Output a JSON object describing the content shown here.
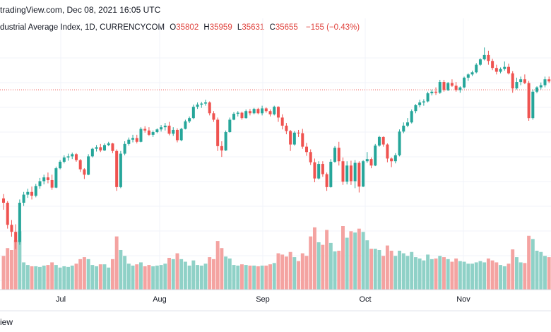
{
  "header": {
    "source": "tradingView.com, Dec 08, 2021 16:05 UTC"
  },
  "symbol": {
    "name": "dustrial Average Index, 1D, CURRENCYCOM",
    "open_key": "O",
    "open": "35802",
    "high_key": "H",
    "high": "35959",
    "low_key": "L",
    "low": "35631",
    "close_key": "C",
    "close": "35655",
    "change": "−155 (−0.43%)"
  },
  "footer": {
    "text": "iew"
  },
  "colors": {
    "up": "#26a69a",
    "down": "#ef5350",
    "vol_up": "#8fd1c7",
    "vol_down": "#f4a3a1",
    "price_line": "#ef5350",
    "grid": "#f0f3fa"
  },
  "chart_data": {
    "type": "candlestick",
    "title": "",
    "x_ticks": [
      "Jul",
      "Aug",
      "Sep",
      "Oct",
      "Nov"
    ],
    "ylim": [
      32800,
      36600
    ],
    "last_price": 35655,
    "candles": [
      [
        33640,
        33720,
        33430,
        33560,
        520
      ],
      [
        33560,
        33590,
        33080,
        33150,
        640
      ],
      [
        33150,
        33240,
        32930,
        33020,
        610
      ],
      [
        33020,
        33160,
        32700,
        32830,
        760
      ],
      [
        32830,
        33620,
        32780,
        33560,
        900
      ],
      [
        33560,
        33760,
        33500,
        33710,
        420
      ],
      [
        33710,
        33820,
        33650,
        33760,
        380
      ],
      [
        33760,
        33860,
        33620,
        33690,
        360
      ],
      [
        33690,
        33910,
        33660,
        33870,
        360
      ],
      [
        33870,
        34020,
        33820,
        33960,
        350
      ],
      [
        33960,
        34080,
        33900,
        34030,
        370
      ],
      [
        34030,
        34120,
        33920,
        33980,
        380
      ],
      [
        33980,
        34080,
        33800,
        33840,
        420
      ],
      [
        33840,
        34230,
        33830,
        34200,
        380
      ],
      [
        34200,
        34350,
        34180,
        34320,
        340
      ],
      [
        34320,
        34440,
        34290,
        34400,
        360
      ],
      [
        34400,
        34470,
        34340,
        34420,
        350
      ],
      [
        34420,
        34490,
        34370,
        34460,
        370
      ],
      [
        34460,
        34480,
        34320,
        34350,
        400
      ],
      [
        34350,
        34370,
        34130,
        34180,
        470
      ],
      [
        34180,
        34200,
        34000,
        34080,
        500
      ],
      [
        34080,
        34460,
        34070,
        34420,
        470
      ],
      [
        34420,
        34580,
        34400,
        34560,
        380
      ],
      [
        34560,
        34630,
        34510,
        34590,
        360
      ],
      [
        34590,
        34650,
        34500,
        34530,
        390
      ],
      [
        34530,
        34660,
        34520,
        34630,
        390
      ],
      [
        34630,
        34690,
        34610,
        34660,
        340
      ],
      [
        34660,
        34670,
        34480,
        34520,
        470
      ],
      [
        34520,
        34550,
        33780,
        33850,
        820
      ],
      [
        33850,
        34520,
        33830,
        34470,
        610
      ],
      [
        34470,
        34700,
        34440,
        34650,
        520
      ],
      [
        34650,
        34770,
        34620,
        34730,
        400
      ],
      [
        34730,
        34820,
        34680,
        34760,
        370
      ],
      [
        34760,
        34820,
        34660,
        34690,
        390
      ],
      [
        34690,
        34960,
        34680,
        34930,
        420
      ],
      [
        34930,
        34980,
        34860,
        34900,
        360
      ],
      [
        34900,
        34960,
        34800,
        34820,
        380
      ],
      [
        34820,
        34900,
        34780,
        34870,
        360
      ],
      [
        34870,
        34940,
        34850,
        34920,
        370
      ],
      [
        34920,
        35000,
        34880,
        34960,
        380
      ],
      [
        34960,
        35040,
        34900,
        34990,
        400
      ],
      [
        34990,
        35060,
        34810,
        34840,
        490
      ],
      [
        34840,
        34960,
        34800,
        34910,
        470
      ],
      [
        34910,
        34940,
        34680,
        34720,
        560
      ],
      [
        34720,
        34950,
        34700,
        34930,
        470
      ],
      [
        34930,
        35100,
        34920,
        35070,
        430
      ],
      [
        35070,
        35160,
        35040,
        35130,
        370
      ],
      [
        35130,
        35380,
        35110,
        35340,
        450
      ],
      [
        35340,
        35420,
        35300,
        35380,
        380
      ],
      [
        35380,
        35430,
        35320,
        35400,
        370
      ],
      [
        35400,
        35470,
        35360,
        35420,
        400
      ],
      [
        35420,
        35440,
        35180,
        35220,
        500
      ],
      [
        35220,
        35260,
        35060,
        35100,
        470
      ],
      [
        35100,
        35140,
        34520,
        34610,
        750
      ],
      [
        34610,
        34700,
        34410,
        34530,
        640
      ],
      [
        34530,
        34900,
        34520,
        34870,
        510
      ],
      [
        34870,
        35140,
        34860,
        35100,
        480
      ],
      [
        35100,
        35240,
        35090,
        35210,
        380
      ],
      [
        35210,
        35260,
        35160,
        35230,
        370
      ],
      [
        35230,
        35250,
        35100,
        35130,
        390
      ],
      [
        35130,
        35290,
        35120,
        35260,
        380
      ],
      [
        35260,
        35300,
        35180,
        35220,
        370
      ],
      [
        35220,
        35320,
        35200,
        35300,
        370
      ],
      [
        35300,
        35320,
        35200,
        35220,
        360
      ],
      [
        35220,
        35360,
        35180,
        35310,
        370
      ],
      [
        35310,
        35330,
        35230,
        35260,
        370
      ],
      [
        35260,
        35290,
        35160,
        35200,
        390
      ],
      [
        35200,
        35360,
        35180,
        35340,
        410
      ],
      [
        35340,
        35350,
        35060,
        35140,
        560
      ],
      [
        35140,
        35200,
        34920,
        34990,
        540
      ],
      [
        34990,
        35040,
        34830,
        34890,
        510
      ],
      [
        34890,
        34910,
        34520,
        34640,
        580
      ],
      [
        34640,
        34890,
        34620,
        34860,
        500
      ],
      [
        34860,
        34910,
        34780,
        34850,
        440
      ],
      [
        34850,
        34930,
        34560,
        34600,
        560
      ],
      [
        34600,
        34670,
        34430,
        34500,
        520
      ],
      [
        34500,
        34550,
        34260,
        34310,
        820
      ],
      [
        34310,
        34380,
        33940,
        34010,
        960
      ],
      [
        34010,
        34330,
        33990,
        34280,
        730
      ],
      [
        34280,
        34330,
        34040,
        34090,
        690
      ],
      [
        34090,
        34120,
        33780,
        33850,
        920
      ],
      [
        33850,
        34370,
        33840,
        34320,
        720
      ],
      [
        34320,
        34610,
        34300,
        34580,
        590
      ],
      [
        34580,
        34690,
        34250,
        34330,
        600
      ],
      [
        34330,
        34400,
        33890,
        33950,
        980
      ],
      [
        33950,
        34330,
        33900,
        34250,
        800
      ],
      [
        34250,
        34340,
        33890,
        33960,
        900
      ],
      [
        33960,
        34350,
        33830,
        34300,
        880
      ],
      [
        34300,
        34330,
        33750,
        33860,
        940
      ],
      [
        33860,
        34350,
        33850,
        34330,
        890
      ],
      [
        34330,
        34500,
        34300,
        34370,
        760
      ],
      [
        34370,
        34400,
        34200,
        34250,
        630
      ],
      [
        34250,
        34650,
        34240,
        34620,
        630
      ],
      [
        34620,
        34800,
        34600,
        34780,
        610
      ],
      [
        34780,
        34790,
        34600,
        34640,
        520
      ],
      [
        34640,
        34660,
        34310,
        34380,
        680
      ],
      [
        34380,
        34400,
        34220,
        34330,
        600
      ],
      [
        34330,
        34480,
        34290,
        34440,
        520
      ],
      [
        34440,
        34920,
        34420,
        34880,
        600
      ],
      [
        34880,
        35050,
        34850,
        34990,
        560
      ],
      [
        34990,
        35130,
        34960,
        35050,
        520
      ],
      [
        35050,
        35290,
        35030,
        35260,
        580
      ],
      [
        35260,
        35390,
        35220,
        35370,
        500
      ],
      [
        35370,
        35470,
        35330,
        35420,
        480
      ],
      [
        35420,
        35480,
        35360,
        35440,
        450
      ],
      [
        35440,
        35620,
        35420,
        35590,
        540
      ],
      [
        35590,
        35660,
        35550,
        35620,
        470
      ],
      [
        35620,
        35700,
        35560,
        35600,
        480
      ],
      [
        35600,
        35840,
        35580,
        35800,
        520
      ],
      [
        35800,
        35840,
        35620,
        35650,
        500
      ],
      [
        35650,
        35800,
        35630,
        35780,
        470
      ],
      [
        35780,
        35850,
        35710,
        35730,
        430
      ],
      [
        35730,
        35800,
        35620,
        35650,
        480
      ],
      [
        35650,
        35720,
        35600,
        35700,
        440
      ],
      [
        35700,
        35900,
        35680,
        35880,
        430
      ],
      [
        35880,
        35960,
        35820,
        35940,
        400
      ],
      [
        35940,
        36010,
        35910,
        35980,
        400
      ],
      [
        35980,
        36150,
        35960,
        36120,
        420
      ],
      [
        36120,
        36240,
        36100,
        36220,
        440
      ],
      [
        36220,
        36440,
        36200,
        36300,
        420
      ],
      [
        36300,
        36380,
        36120,
        36190,
        480
      ],
      [
        36190,
        36230,
        36020,
        36060,
        450
      ],
      [
        36060,
        36120,
        35940,
        35990,
        420
      ],
      [
        35990,
        36070,
        35960,
        36040,
        380
      ],
      [
        36040,
        36180,
        36010,
        36080,
        360
      ],
      [
        36080,
        36140,
        35940,
        35960,
        400
      ],
      [
        35960,
        36000,
        35600,
        35680,
        620
      ],
      [
        35680,
        35880,
        35660,
        35800,
        500
      ],
      [
        35800,
        35900,
        35740,
        35850,
        420
      ],
      [
        35850,
        35940,
        35760,
        35780,
        410
      ],
      [
        35780,
        35820,
        35080,
        35130,
        830
      ],
      [
        35130,
        35660,
        35100,
        35620,
        780
      ],
      [
        35620,
        35720,
        35590,
        35700,
        600
      ],
      [
        35700,
        35790,
        35660,
        35740,
        580
      ],
      [
        35740,
        35900,
        35700,
        35850,
        520
      ],
      [
        35850,
        35900,
        35780,
        35810,
        500
      ]
    ]
  }
}
